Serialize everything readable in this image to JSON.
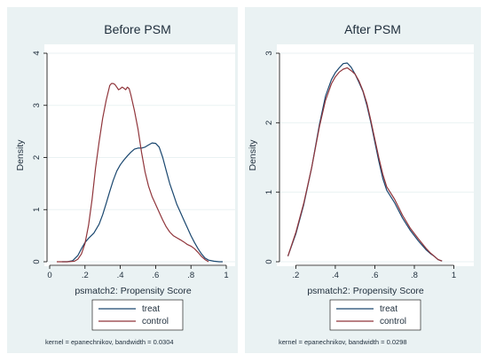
{
  "colors": {
    "treat": "#1a476f",
    "control": "#90353b",
    "panel_bg": "#eaf2f3",
    "plot_bg": "#ffffff"
  },
  "chart_data": [
    {
      "type": "line",
      "title": "Before PSM",
      "xlabel": "psmatch2: Propensity Score",
      "ylabel": "Density",
      "xlim": [
        0,
        1
      ],
      "ylim": [
        0,
        4
      ],
      "xticks": [
        "0",
        ".2",
        ".4",
        ".6",
        ".8",
        "1"
      ],
      "yticks": [
        "0",
        "1",
        "2",
        "3",
        "4"
      ],
      "grid": true,
      "legend": {
        "position": "bottom",
        "entries": [
          "treat",
          "control"
        ]
      },
      "note": "kernel = epanechnikov, bandwidth = 0.0304",
      "series": [
        {
          "name": "treat",
          "color": "#1a476f",
          "x": [
            0.07,
            0.1,
            0.13,
            0.16,
            0.18,
            0.2,
            0.22,
            0.25,
            0.28,
            0.3,
            0.32,
            0.34,
            0.36,
            0.38,
            0.4,
            0.42,
            0.44,
            0.46,
            0.48,
            0.5,
            0.52,
            0.54,
            0.56,
            0.58,
            0.6,
            0.62,
            0.64,
            0.66,
            0.68,
            0.7,
            0.72,
            0.74,
            0.76,
            0.78,
            0.8,
            0.82,
            0.84,
            0.86,
            0.88,
            0.9,
            0.93,
            0.96,
            0.98
          ],
          "y": [
            0.0,
            0.0,
            0.02,
            0.12,
            0.25,
            0.37,
            0.45,
            0.55,
            0.72,
            0.9,
            1.12,
            1.35,
            1.56,
            1.74,
            1.86,
            1.95,
            2.03,
            2.1,
            2.16,
            2.18,
            2.18,
            2.2,
            2.24,
            2.28,
            2.27,
            2.2,
            2.0,
            1.75,
            1.5,
            1.3,
            1.1,
            0.95,
            0.8,
            0.65,
            0.5,
            0.37,
            0.25,
            0.15,
            0.07,
            0.03,
            0.01,
            0.0,
            0.0
          ]
        },
        {
          "name": "control",
          "color": "#90353b",
          "x": [
            0.04,
            0.1,
            0.14,
            0.16,
            0.18,
            0.2,
            0.22,
            0.24,
            0.26,
            0.28,
            0.3,
            0.32,
            0.34,
            0.35,
            0.36,
            0.37,
            0.38,
            0.39,
            0.4,
            0.41,
            0.42,
            0.43,
            0.44,
            0.45,
            0.46,
            0.48,
            0.5,
            0.52,
            0.54,
            0.56,
            0.58,
            0.6,
            0.62,
            0.64,
            0.66,
            0.68,
            0.7,
            0.72,
            0.74,
            0.76,
            0.78,
            0.8,
            0.82,
            0.84,
            0.86,
            0.88,
            0.9
          ],
          "y": [
            0.0,
            0.0,
            0.01,
            0.05,
            0.15,
            0.35,
            0.7,
            1.2,
            1.8,
            2.3,
            2.75,
            3.1,
            3.38,
            3.42,
            3.42,
            3.4,
            3.35,
            3.3,
            3.32,
            3.35,
            3.33,
            3.3,
            3.35,
            3.32,
            3.2,
            2.9,
            2.55,
            2.1,
            1.72,
            1.45,
            1.25,
            1.1,
            0.95,
            0.8,
            0.67,
            0.57,
            0.5,
            0.46,
            0.42,
            0.38,
            0.33,
            0.3,
            0.25,
            0.18,
            0.1,
            0.04,
            0.0
          ]
        }
      ]
    },
    {
      "type": "line",
      "title": "After PSM",
      "xlabel": "psmatch2: Propensity Score",
      "ylabel": "Density",
      "xlim": [
        0.14,
        1.02
      ],
      "ylim": [
        0,
        3
      ],
      "xticks": [
        ".2",
        ".4",
        ".6",
        ".8",
        "1"
      ],
      "yticks": [
        "0",
        "1",
        "2",
        "3"
      ],
      "grid": true,
      "legend": {
        "position": "bottom",
        "entries": [
          "treat",
          "control"
        ]
      },
      "note": "kernel = epanechnikov, bandwidth = 0.0298",
      "series": [
        {
          "name": "treat",
          "color": "#1a476f",
          "x": [
            0.16,
            0.2,
            0.24,
            0.28,
            0.32,
            0.35,
            0.38,
            0.4,
            0.42,
            0.44,
            0.46,
            0.48,
            0.5,
            0.52,
            0.54,
            0.56,
            0.58,
            0.6,
            0.62,
            0.64,
            0.66,
            0.7,
            0.74,
            0.78,
            0.82,
            0.86,
            0.88,
            0.9,
            0.92,
            0.94
          ],
          "y": [
            0.08,
            0.4,
            0.82,
            1.35,
            1.98,
            2.38,
            2.62,
            2.72,
            2.79,
            2.85,
            2.86,
            2.8,
            2.7,
            2.58,
            2.45,
            2.25,
            2.0,
            1.72,
            1.45,
            1.2,
            1.03,
            0.85,
            0.63,
            0.45,
            0.3,
            0.17,
            0.12,
            0.08,
            0.03,
            0.01
          ]
        },
        {
          "name": "control",
          "color": "#90353b",
          "x": [
            0.16,
            0.2,
            0.24,
            0.28,
            0.32,
            0.35,
            0.38,
            0.4,
            0.42,
            0.44,
            0.46,
            0.48,
            0.5,
            0.52,
            0.54,
            0.56,
            0.58,
            0.6,
            0.62,
            0.64,
            0.66,
            0.7,
            0.74,
            0.78,
            0.82,
            0.86,
            0.88,
            0.9,
            0.92,
            0.94
          ],
          "y": [
            0.08,
            0.42,
            0.84,
            1.35,
            1.95,
            2.32,
            2.56,
            2.66,
            2.73,
            2.77,
            2.79,
            2.75,
            2.7,
            2.6,
            2.46,
            2.28,
            2.03,
            1.76,
            1.5,
            1.26,
            1.08,
            0.9,
            0.67,
            0.48,
            0.33,
            0.19,
            0.13,
            0.08,
            0.03,
            0.01
          ]
        }
      ]
    }
  ]
}
